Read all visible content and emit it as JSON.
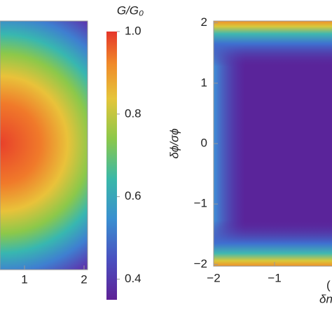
{
  "chart_data": [
    {
      "type": "heatmap",
      "xlim": [
        -2,
        2
      ],
      "xticks": [
        1,
        2
      ],
      "colorbar": {
        "title": "G/G₀",
        "lim": [
          0.35,
          1
        ],
        "ticks": [
          {
            "value": 1,
            "label": "1.0"
          },
          0.8,
          0.6,
          0.4
        ]
      }
    },
    {
      "type": "heatmap",
      "xlim": [
        -2,
        2
      ],
      "ylim": [
        -2.03,
        2.03
      ],
      "xticks": [
        {
          "value": -2,
          "label": "−2"
        },
        {
          "value": -1,
          "label": "−1"
        }
      ],
      "yticks": [
        2,
        1,
        0,
        {
          "value": -1,
          "label": "−1"
        },
        {
          "value": -2,
          "label": "−2"
        }
      ],
      "ylabel": "δϕ/σϕ",
      "xlabel": "δn",
      "panel_label": "("
    }
  ]
}
